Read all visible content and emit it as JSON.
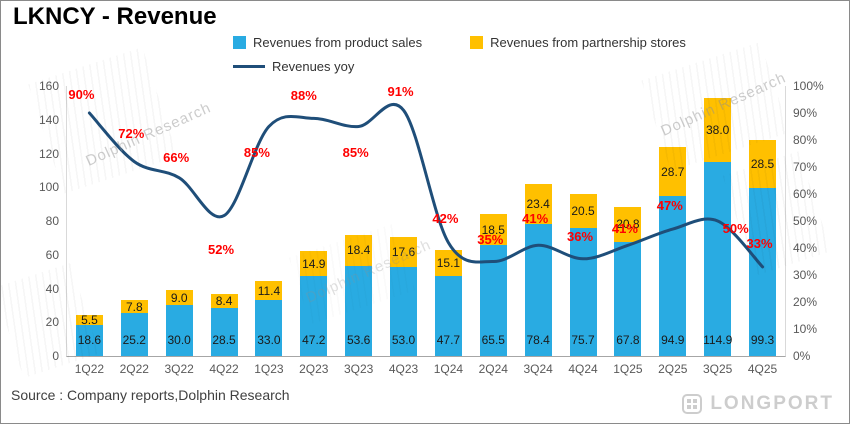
{
  "title": "LKNCY - Revenue",
  "legend": {
    "product_sales": "Revenues from product sales",
    "partnership_stores": "Revenues from partnership stores",
    "yoy": "Revenues yoy"
  },
  "source": "Source : Company reports,Dolphin Research",
  "watermarks": {
    "dolphin": "Dolphin Research",
    "longport": "LONGPORT"
  },
  "colors": {
    "product_sales": "#29ABE2",
    "partnership_stores": "#FFC000",
    "yoy_line": "#1F4E79",
    "yoy_label": "#FF0000"
  },
  "chart_data": {
    "type": "bar",
    "subtype": "stacked-bars-with-yoy-line",
    "title": "LKNCY - Revenue",
    "stacked": true,
    "grid": false,
    "legend_position": "top",
    "categories": [
      "1Q22",
      "2Q22",
      "3Q22",
      "4Q22",
      "1Q23",
      "2Q23",
      "3Q23",
      "4Q23",
      "1Q24",
      "2Q24",
      "3Q24",
      "4Q24",
      "1Q25",
      "2Q25",
      "3Q25",
      "4Q25"
    ],
    "series": [
      {
        "name": "Revenues from product sales",
        "type": "bar",
        "axis": "left",
        "color": "#29ABE2",
        "values": [
          18.6,
          25.2,
          30.0,
          28.5,
          33.0,
          47.2,
          53.6,
          53.0,
          47.7,
          65.5,
          78.4,
          75.7,
          67.8,
          94.9,
          114.9,
          99.3
        ]
      },
      {
        "name": "Revenues from partnership stores",
        "type": "bar",
        "axis": "left",
        "color": "#FFC000",
        "values": [
          5.5,
          7.8,
          9.0,
          8.4,
          11.4,
          14.9,
          18.4,
          17.6,
          15.1,
          18.5,
          23.4,
          20.5,
          20.8,
          28.7,
          38.0,
          28.5
        ]
      },
      {
        "name": "Revenues yoy",
        "type": "line",
        "axis": "right",
        "color": "#1F4E79",
        "values": [
          90,
          72,
          66,
          52,
          85,
          88,
          85,
          91,
          42,
          35,
          41,
          36,
          41,
          47,
          50,
          33
        ],
        "labels": [
          "90%",
          "72%",
          "66%",
          "52%",
          "85%",
          "88%",
          "85%",
          "91%",
          "42%",
          "35%",
          "41%",
          "36%",
          "41%",
          "47%",
          "50%",
          "33%"
        ]
      }
    ],
    "left_axis": {
      "min": 0,
      "max": 160,
      "step": 20,
      "tick_labels": [
        "0",
        "20",
        "40",
        "60",
        "80",
        "100",
        "120",
        "140",
        "160"
      ]
    },
    "right_axis": {
      "min": 0,
      "max": 100,
      "step": 10,
      "tick_labels": [
        "0%",
        "10%",
        "20%",
        "30%",
        "40%",
        "50%",
        "60%",
        "70%",
        "80%",
        "90%",
        "100%"
      ]
    }
  }
}
